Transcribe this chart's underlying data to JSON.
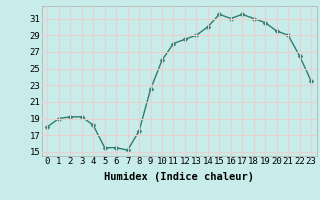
{
  "x": [
    0,
    1,
    2,
    3,
    4,
    5,
    6,
    7,
    8,
    9,
    10,
    11,
    12,
    13,
    14,
    15,
    16,
    17,
    18,
    19,
    20,
    21,
    22,
    23
  ],
  "y": [
    18.0,
    19.0,
    19.2,
    19.2,
    18.2,
    15.5,
    15.5,
    15.2,
    17.5,
    22.5,
    26.0,
    28.0,
    28.5,
    29.0,
    30.0,
    31.5,
    31.0,
    31.5,
    31.0,
    30.5,
    29.5,
    29.0,
    26.5,
    23.5
  ],
  "line_color": "#2d7d6e",
  "marker": "D",
  "marker_size": 2.5,
  "xlabel": "Humidex (Indice chaleur)",
  "xlim": [
    -0.5,
    23.5
  ],
  "ylim": [
    14.5,
    32.5
  ],
  "yticks": [
    15,
    17,
    19,
    21,
    23,
    25,
    27,
    29,
    31
  ],
  "xticks": [
    0,
    1,
    2,
    3,
    4,
    5,
    6,
    7,
    8,
    9,
    10,
    11,
    12,
    13,
    14,
    15,
    16,
    17,
    18,
    19,
    20,
    21,
    22,
    23
  ],
  "background_color": "#c8ece9",
  "grid_color": "#e8d0d0",
  "tick_label_fontsize": 6.5,
  "xlabel_fontsize": 7.5,
  "line_width": 1.0
}
